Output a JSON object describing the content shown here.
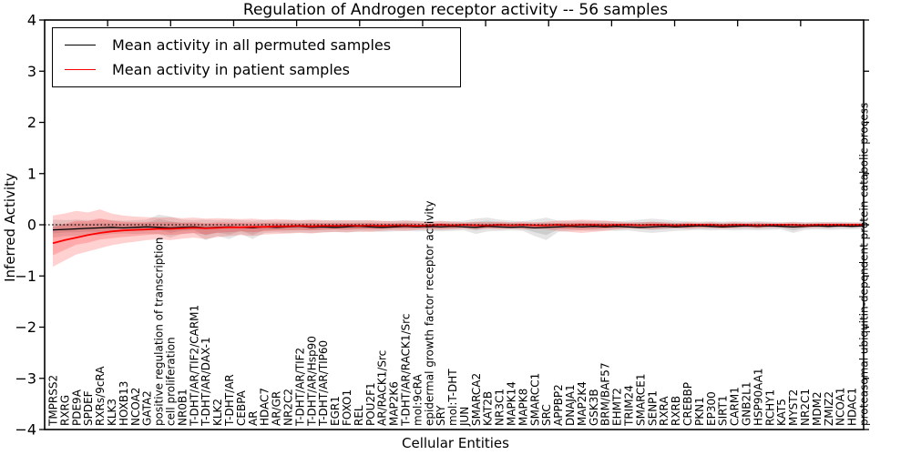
{
  "chart_data": {
    "type": "line",
    "title": "Regulation of Androgen receptor activity -- 56 samples",
    "xlabel": "Cellular Entities",
    "ylabel": "Inferred Activity",
    "ylim": [
      -4,
      4
    ],
    "ytick_labels": [
      "4",
      "3",
      "2",
      "1",
      "0",
      "−1",
      "−2",
      "−3",
      "−4"
    ],
    "grid": false,
    "legend_position": "upper left",
    "zero_line": 0,
    "categories": [
      "TMPRSS2",
      "RXRG",
      "PDE9A",
      "SPDEF",
      "RXRs/9cRA",
      "KLK3",
      "HOXB13",
      "NCOA2",
      "GATA2",
      "positive regulation of transcription",
      "cell proliferation",
      "NR0B1",
      "T-DHT/AR/TIF2/CARM1",
      "T-DHT/AR/DAX-1",
      "KLK2",
      "T-DHT/AR",
      "CEBPA",
      "AR",
      "HDAC7",
      "AR/GR",
      "NR2C2",
      "T-DHT/AR/TIF2",
      "T-DHT/AR/Hsp90",
      "T-DHT/AR/TIP60",
      "EGR1",
      "FOXO1",
      "REL",
      "POU2F1",
      "AR/RACK1/Src",
      "MAP2K6",
      "T-DHT/AR/RACK1/Src",
      "mol:9cRA",
      "epidermal growth factor receptor activity",
      "SRY",
      "mol:T-DHT",
      "JUN",
      "SMARCA2",
      "KAT2B",
      "NR3C1",
      "MAPK14",
      "MAPK8",
      "SMARCC1",
      "SRC",
      "APPBP2",
      "DNAJA1",
      "MAP2K4",
      "GSK3B",
      "BRM/BAF57",
      "EHMT2",
      "TRIM24",
      "SMARCE1",
      "SENP1",
      "RXRA",
      "RXRB",
      "CREBBP",
      "PKN1",
      "EP300",
      "SIRT1",
      "CARM1",
      "GNB2L1",
      "HSP90AA1",
      "RCHY1",
      "KAT5",
      "MYST2",
      "NR2C1",
      "MDM2",
      "ZMIZ2",
      "NCOA1",
      "HDAC1",
      "proteasomal ubiquitin-dependent protein catabolic process"
    ],
    "series": [
      {
        "name": "Mean activity in all permuted samples",
        "color": "#000000",
        "values": [
          -0.1,
          -0.09,
          -0.08,
          -0.07,
          -0.06,
          -0.05,
          -0.06,
          -0.05,
          -0.04,
          -0.05,
          -0.06,
          -0.05,
          -0.04,
          -0.06,
          -0.05,
          -0.04,
          -0.05,
          -0.06,
          -0.04,
          -0.05,
          -0.04,
          -0.03,
          -0.05,
          -0.04,
          -0.05,
          -0.04,
          -0.03,
          -0.04,
          -0.05,
          -0.04,
          -0.03,
          -0.04,
          -0.03,
          -0.04,
          -0.03,
          -0.04,
          -0.05,
          -0.03,
          -0.04,
          -0.05,
          -0.04,
          -0.06,
          -0.05,
          -0.04,
          -0.03,
          -0.04,
          -0.03,
          -0.04,
          -0.03,
          -0.04,
          -0.05,
          -0.04,
          -0.03,
          -0.04,
          -0.03,
          -0.02,
          -0.03,
          -0.04,
          -0.03,
          -0.02,
          -0.03,
          -0.02,
          -0.03,
          -0.04,
          -0.03,
          -0.02,
          -0.03,
          -0.02,
          -0.03,
          -0.02
        ]
      },
      {
        "name": "Mean activity in patient samples",
        "color": "#ff0000",
        "values": [
          -0.36,
          -0.3,
          -0.25,
          -0.2,
          -0.16,
          -0.13,
          -0.11,
          -0.1,
          -0.09,
          -0.08,
          -0.08,
          -0.07,
          -0.06,
          -0.07,
          -0.06,
          -0.05,
          -0.05,
          -0.04,
          -0.04,
          -0.03,
          -0.03,
          -0.02,
          -0.03,
          -0.02,
          -0.02,
          -0.01,
          -0.02,
          -0.01,
          -0.02,
          -0.01,
          -0.01,
          -0.02,
          -0.01,
          0.0,
          -0.01,
          0.0,
          -0.01,
          -0.01,
          0.0,
          -0.01,
          0.0,
          -0.01,
          -0.01,
          0.0,
          -0.01,
          0.0,
          0.0,
          -0.01,
          0.0,
          0.0,
          -0.01,
          0.0,
          0.0,
          -0.01,
          0.0,
          0.0,
          0.0,
          -0.01,
          0.0,
          0.0,
          -0.01,
          0.0,
          0.0,
          0.0,
          -0.01,
          0.0,
          0.0,
          0.0,
          0.0,
          0.0
        ]
      }
    ],
    "bands": [
      {
        "name": "permuted-samples-band",
        "color": "#000000",
        "opacity": 0.1,
        "hi": [
          0.1,
          0.09,
          0.1,
          0.09,
          0.1,
          0.09,
          0.08,
          0.09,
          0.1,
          0.2,
          0.16,
          0.1,
          0.09,
          0.1,
          0.09,
          0.1,
          0.09,
          0.08,
          0.09,
          0.08,
          0.09,
          0.08,
          0.09,
          0.08,
          0.09,
          0.08,
          0.09,
          0.08,
          0.07,
          0.08,
          0.09,
          0.08,
          0.07,
          0.08,
          0.07,
          0.08,
          0.12,
          0.14,
          0.1,
          0.08,
          0.07,
          0.1,
          0.14,
          0.08,
          0.07,
          0.08,
          0.07,
          0.08,
          0.07,
          0.08,
          0.1,
          0.12,
          0.1,
          0.08,
          0.07,
          0.06,
          0.07,
          0.06,
          0.07,
          0.06,
          0.07,
          0.06,
          0.05,
          0.06,
          0.05,
          0.06,
          0.05,
          0.06,
          0.05,
          0.05
        ],
        "lo": [
          -0.25,
          -0.22,
          -0.22,
          -0.2,
          -0.21,
          -0.18,
          -0.17,
          -0.18,
          -0.17,
          -0.18,
          -0.25,
          -0.18,
          -0.16,
          -0.3,
          -0.22,
          -0.28,
          -0.18,
          -0.28,
          -0.16,
          -0.15,
          -0.16,
          -0.15,
          -0.16,
          -0.15,
          -0.14,
          -0.15,
          -0.14,
          -0.13,
          -0.14,
          -0.13,
          -0.12,
          -0.13,
          -0.12,
          -0.13,
          -0.12,
          -0.11,
          -0.18,
          -0.13,
          -0.12,
          -0.11,
          -0.12,
          -0.22,
          -0.3,
          -0.14,
          -0.12,
          -0.11,
          -0.12,
          -0.11,
          -0.12,
          -0.11,
          -0.14,
          -0.16,
          -0.14,
          -0.12,
          -0.11,
          -0.1,
          -0.11,
          -0.1,
          -0.11,
          -0.1,
          -0.11,
          -0.1,
          -0.09,
          -0.16,
          -0.1,
          -0.09,
          -0.1,
          -0.09,
          -0.09,
          -0.08
        ]
      },
      {
        "name": "patient-samples-band",
        "color": "#ff0000",
        "opacity": 0.18,
        "hi": [
          0.18,
          0.22,
          0.27,
          0.24,
          0.3,
          0.22,
          0.18,
          0.16,
          0.15,
          0.14,
          0.15,
          0.13,
          0.14,
          0.12,
          0.13,
          0.12,
          0.11,
          0.12,
          0.1,
          0.11,
          0.1,
          0.09,
          0.1,
          0.09,
          0.08,
          0.09,
          0.08,
          0.09,
          0.08,
          0.07,
          0.08,
          0.07,
          0.06,
          0.07,
          0.06,
          0.05,
          0.06,
          0.05,
          0.06,
          0.05,
          0.06,
          0.05,
          0.06,
          0.08,
          0.09,
          0.1,
          0.09,
          0.08,
          0.06,
          0.05,
          0.05,
          0.06,
          0.05,
          0.04,
          0.05,
          0.04,
          0.05,
          0.04,
          0.05,
          0.04,
          0.05,
          0.04,
          0.04,
          0.05,
          0.04,
          0.04,
          0.05,
          0.04,
          0.04,
          0.04
        ],
        "lo": [
          -0.82,
          -0.7,
          -0.58,
          -0.52,
          -0.46,
          -0.4,
          -0.36,
          -0.33,
          -0.3,
          -0.28,
          -0.3,
          -0.27,
          -0.25,
          -0.28,
          -0.24,
          -0.22,
          -0.2,
          -0.22,
          -0.19,
          -0.18,
          -0.17,
          -0.16,
          -0.17,
          -0.15,
          -0.14,
          -0.15,
          -0.13,
          -0.14,
          -0.12,
          -0.11,
          -0.12,
          -0.1,
          -0.09,
          -0.1,
          -0.09,
          -0.08,
          -0.09,
          -0.08,
          -0.09,
          -0.08,
          -0.09,
          -0.08,
          -0.09,
          -0.12,
          -0.14,
          -0.16,
          -0.14,
          -0.12,
          -0.09,
          -0.08,
          -0.08,
          -0.09,
          -0.08,
          -0.07,
          -0.08,
          -0.07,
          -0.07,
          -0.08,
          -0.07,
          -0.06,
          -0.07,
          -0.06,
          -0.06,
          -0.07,
          -0.06,
          -0.06,
          -0.06,
          -0.05,
          -0.05,
          -0.05
        ]
      }
    ]
  }
}
